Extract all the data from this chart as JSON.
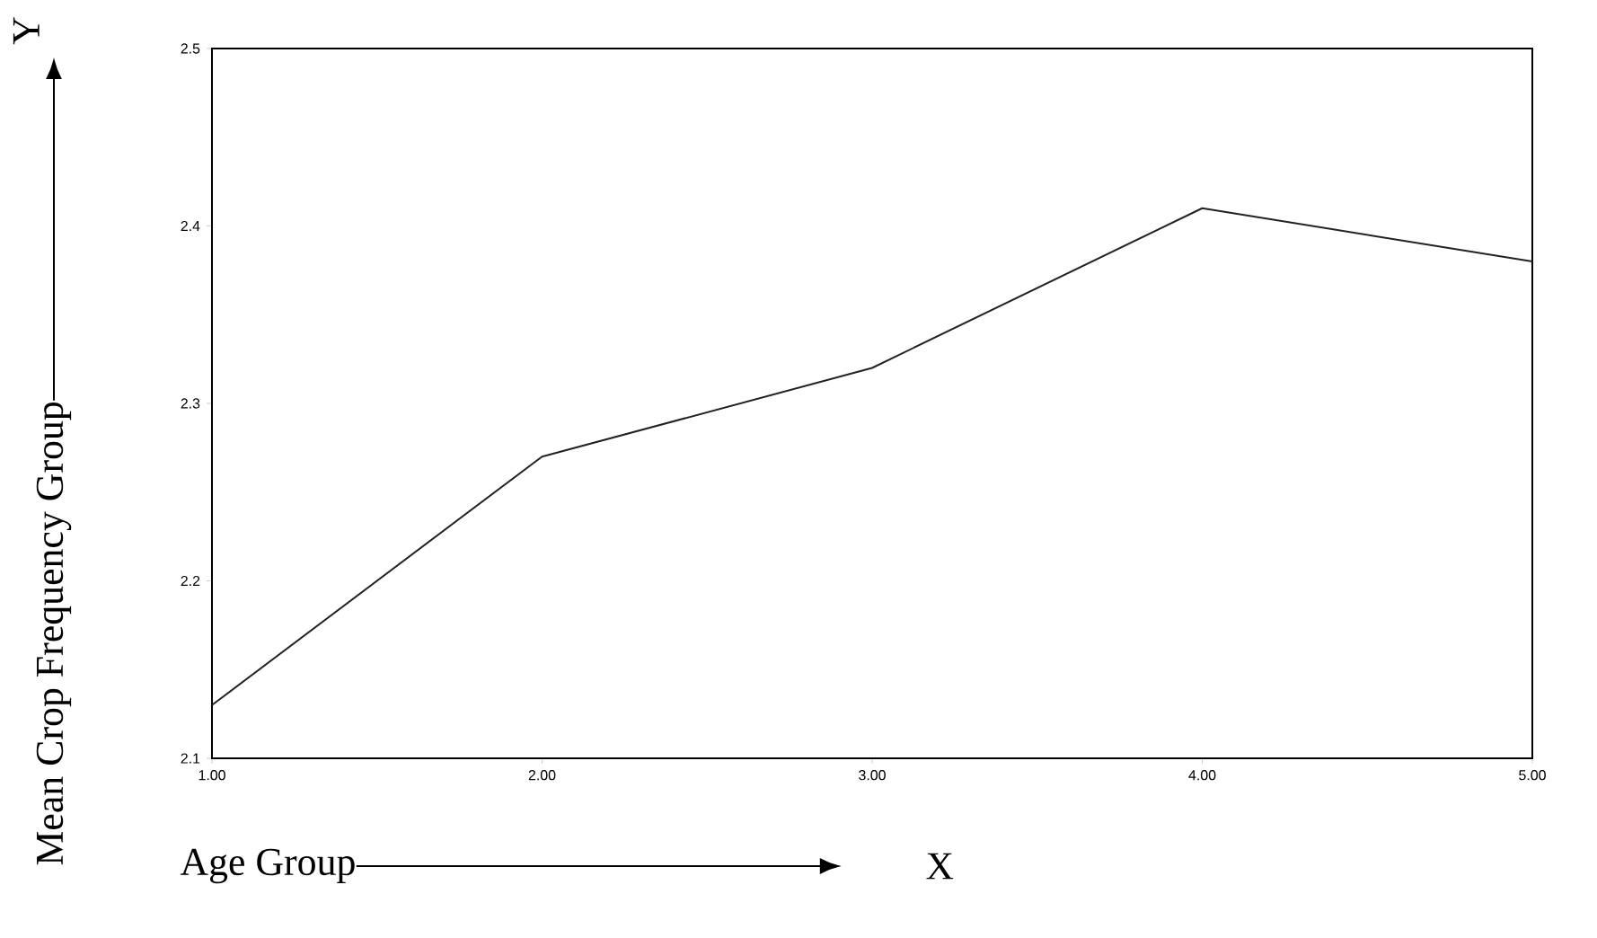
{
  "chart_data": {
    "type": "line",
    "xlabel": "Age Group",
    "ylabel": "Mean Crop Frequency Group",
    "annotations": [
      "X",
      "Y"
    ],
    "x": [
      1,
      2,
      3,
      4,
      5
    ],
    "values": [
      2.13,
      2.27,
      2.32,
      2.41,
      2.38
    ],
    "color": "#222222",
    "xlim": [
      1,
      5
    ],
    "ylim": [
      2.1,
      2.5
    ],
    "xticks": [
      {
        "value": 1,
        "label": "1.00"
      },
      {
        "value": 2,
        "label": "2.00"
      },
      {
        "value": 3,
        "label": "3.00"
      },
      {
        "value": 4,
        "label": "4.00"
      },
      {
        "value": 5,
        "label": "5.00"
      }
    ],
    "yticks": [
      2.1,
      2.2,
      2.3,
      2.4,
      2.5
    ],
    "marker": "none",
    "line_style": "solid"
  }
}
